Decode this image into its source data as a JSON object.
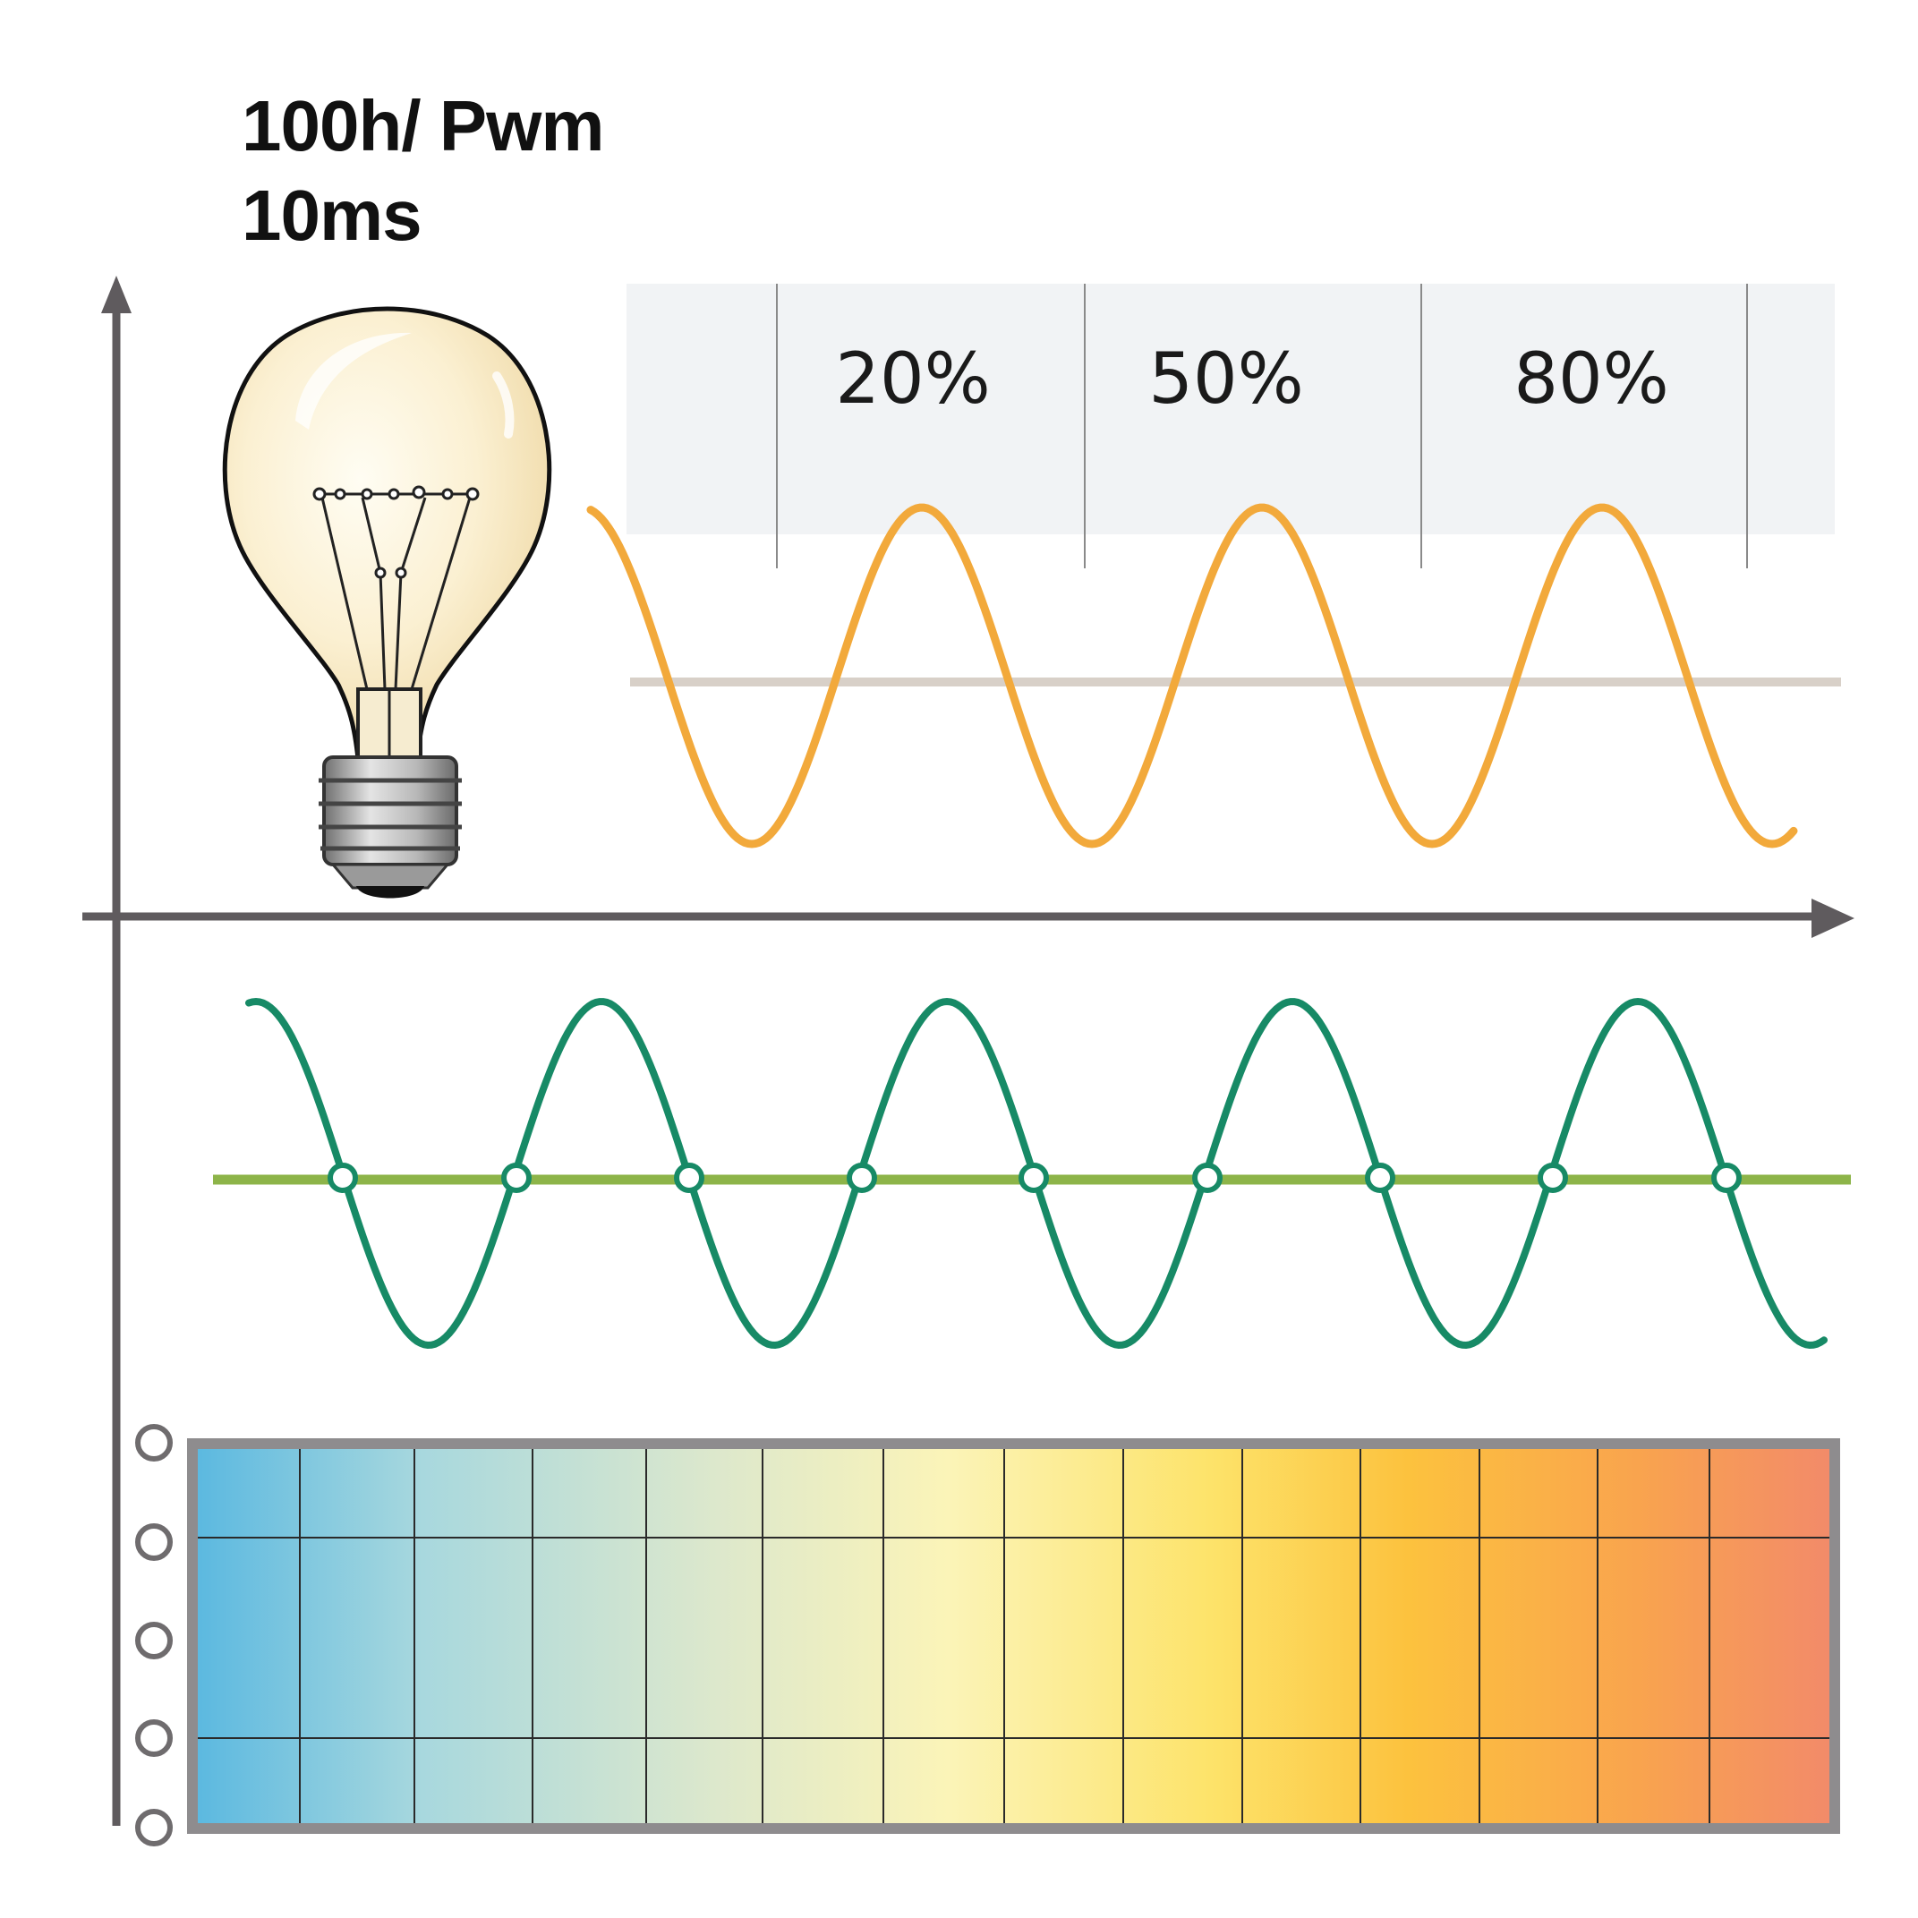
{
  "header": {
    "line1": "100h/ Pwm",
    "line2": "10ms"
  },
  "duty_labels": [
    "20%",
    "50%",
    "80%"
  ],
  "icons": {
    "bulb": "light-bulb-icon"
  },
  "colors": {
    "axis": "#5f5b5e",
    "orange_wave": "#f2a93b",
    "orange_ref_line": "#d8d0c8",
    "green_wave": "#178a66",
    "green_ref_line": "#8db449",
    "label_panel": "#f1f3f5",
    "grid_frame": "#8e8c8e",
    "gradient": [
      "#5ab8e0",
      "#a8d8de",
      "#dde8cc",
      "#fbf4b8",
      "#fde36a",
      "#fcc23e",
      "#f9a44e",
      "#f28a6a"
    ]
  },
  "waves": {
    "orange_peaks": 3,
    "green_peaks": 5,
    "green_crossing_markers": 9
  },
  "grid": {
    "columns": 14,
    "side_markers": 5
  }
}
